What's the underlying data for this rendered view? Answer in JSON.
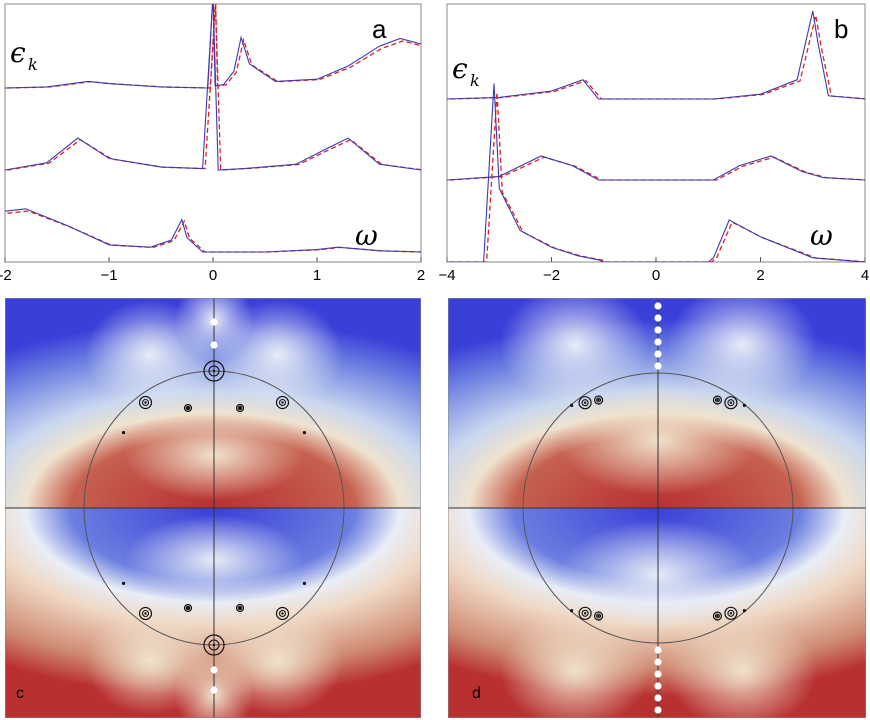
{
  "chart_data": [
    {
      "panel": "a",
      "type": "line",
      "ylabel_symbol": "ϵ",
      "ylabel_subscript": "k",
      "xlabel_symbol": "ω",
      "xlim": [
        -2,
        2
      ],
      "x_ticks": [
        -2,
        -1,
        0,
        1,
        2
      ],
      "x_tick_labels": [
        "-2",
        "−1",
        "0",
        "1",
        "2"
      ],
      "series_colors": {
        "solid": "#3b3bb0",
        "dashed": "#e02020"
      },
      "series": [
        {
          "offset_level": "top",
          "x": [
            -2.0,
            -1.6,
            -1.2,
            -1.0,
            -0.5,
            -0.05,
            0.0,
            0.02,
            0.1,
            0.2,
            0.27,
            0.35,
            0.6,
            1.0,
            1.3,
            1.6,
            1.8,
            2.0
          ],
          "y": [
            0.0,
            0.01,
            0.06,
            0.04,
            0.01,
            0.0,
            0.85,
            0.02,
            0.03,
            0.15,
            0.46,
            0.22,
            0.06,
            0.08,
            0.2,
            0.38,
            0.45,
            0.4
          ]
        },
        {
          "offset_level": "middle",
          "x": [
            -2.0,
            -1.6,
            -1.3,
            -1.0,
            -0.5,
            -0.1,
            0.0,
            0.05,
            0.3,
            0.8,
            1.1,
            1.3,
            1.6,
            2.0
          ],
          "y": [
            0.0,
            0.05,
            0.22,
            0.08,
            0.02,
            0.01,
            1.2,
            0.0,
            0.01,
            0.04,
            0.15,
            0.22,
            0.04,
            0.0
          ]
        },
        {
          "offset_level": "bottom",
          "x": [
            -2.0,
            -1.8,
            -1.4,
            -1.0,
            -0.6,
            -0.4,
            -0.3,
            -0.25,
            -0.1,
            0.5,
            1.0,
            1.2,
            1.6,
            2.0
          ],
          "y": [
            0.34,
            0.36,
            0.22,
            0.06,
            0.04,
            0.1,
            0.27,
            0.12,
            0.0,
            0.0,
            0.02,
            0.04,
            0.01,
            0.0
          ]
        }
      ]
    },
    {
      "panel": "b",
      "type": "line",
      "ylabel_symbol": "ϵ",
      "ylabel_subscript": "k",
      "xlabel_symbol": "ω",
      "xlim": [
        -4,
        4
      ],
      "x_ticks": [
        -4,
        -2,
        0,
        2,
        4
      ],
      "x_tick_labels": [
        "−4",
        "−2",
        "0",
        "2",
        "4"
      ],
      "series_colors": {
        "solid": "#3b3bb0",
        "dashed": "#e02020"
      },
      "series": [
        {
          "offset_level": "top",
          "x": [
            -4.0,
            -3.0,
            -2.0,
            -1.4,
            -1.1,
            -1.0,
            0.0,
            1.1,
            2.0,
            2.7,
            3.0,
            3.1,
            3.3,
            4.0
          ],
          "y": [
            0.0,
            0.01,
            0.05,
            0.12,
            0.0,
            0.0,
            0.0,
            0.0,
            0.03,
            0.12,
            0.55,
            0.35,
            0.02,
            0.0
          ]
        },
        {
          "offset_level": "middle",
          "x": [
            -4.0,
            -3.0,
            -2.2,
            -1.6,
            -1.1,
            -1.0,
            0.0,
            1.1,
            1.6,
            2.2,
            2.8,
            3.2,
            4.0
          ],
          "y": [
            0.0,
            0.03,
            0.2,
            0.12,
            0.0,
            0.0,
            0.0,
            0.0,
            0.12,
            0.2,
            0.07,
            0.02,
            0.0
          ]
        },
        {
          "offset_level": "bottom",
          "x": [
            -4.0,
            -3.3,
            -3.1,
            -3.0,
            -2.6,
            -2.0,
            -1.5,
            -1.1,
            -1.0,
            0.0,
            1.0,
            1.1,
            1.4,
            2.0,
            3.0,
            4.0
          ],
          "y": [
            0.0,
            0.0,
            0.85,
            0.35,
            0.15,
            0.07,
            0.03,
            0.01,
            0.0,
            0.0,
            0.0,
            0.02,
            0.2,
            0.12,
            0.02,
            0.0
          ]
        }
      ]
    },
    {
      "panel": "c",
      "type": "heatmap",
      "colormap": {
        "low": "#3a3fd8",
        "mid": "#f2ecd6",
        "high": "#b83030"
      },
      "circle": true
    },
    {
      "panel": "d",
      "type": "heatmap",
      "colormap": {
        "low": "#3a3fd8",
        "mid": "#f2ecd6",
        "high": "#b83030"
      },
      "circle": true
    }
  ]
}
